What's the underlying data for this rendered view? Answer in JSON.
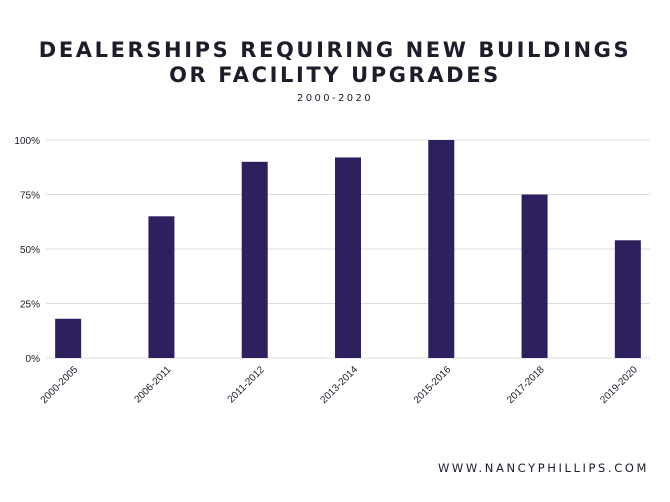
{
  "header": {
    "title_line1": "DEALERSHIPS REQUIRING NEW BUILDINGS",
    "title_line2": "OR FACILITY UPGRADES",
    "subtitle": "2000-2020"
  },
  "footer": {
    "website": "WWW.NANCYPHILLIPS.COM"
  },
  "colors": {
    "bar": "#2e1f5e",
    "grid": "#dcdcdc",
    "text": "#1c1c2b"
  },
  "chart_data": {
    "type": "bar",
    "title": "DEALERSHIPS REQUIRING NEW BUILDINGS OR FACILITY UPGRADES",
    "subtitle": "2000-2020",
    "categories": [
      "2000-2005",
      "2006-2011",
      "2011-2012",
      "2013-2014",
      "2015-2016",
      "2017-2018",
      "2019-2020"
    ],
    "values": [
      18,
      65,
      90,
      92,
      100,
      75,
      54
    ],
    "value_unit": "%",
    "ylim": [
      0,
      100
    ],
    "yticks": [
      "0%",
      "25%",
      "50%",
      "75%",
      "100%"
    ],
    "grid": true,
    "legend": "none"
  }
}
